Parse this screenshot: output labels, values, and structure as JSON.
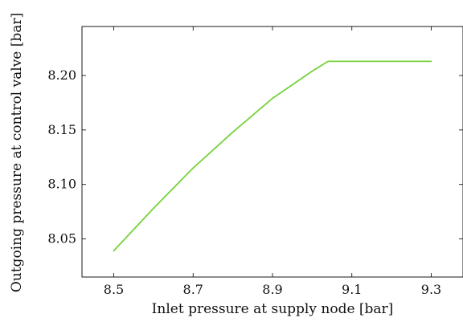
{
  "chart_data": {
    "type": "line",
    "title": "",
    "xlabel": "Inlet pressure at supply node [bar]",
    "ylabel": "Outgoing pressure at control valve [bar]",
    "xlim": [
      8.42,
      9.38
    ],
    "ylim": [
      8.015,
      8.245
    ],
    "grid": false,
    "xticks": [
      8.5,
      8.7,
      8.9,
      9.1,
      9.3
    ],
    "xtick_labels": [
      "8.5",
      "8.7",
      "8.9",
      "9.1",
      "9.3"
    ],
    "yticks": [
      8.05,
      8.1,
      8.15,
      8.2
    ],
    "ytick_labels": [
      "8.05",
      "8.10",
      "8.15",
      "8.20"
    ],
    "series": [
      {
        "color": "#76d23a",
        "x": [
          8.5,
          8.6,
          8.7,
          8.8,
          8.9,
          9.0,
          9.04,
          9.1,
          9.2,
          9.3
        ],
        "y": [
          8.039,
          8.078,
          8.115,
          8.148,
          8.179,
          8.204,
          8.213,
          8.213,
          8.213,
          8.213
        ]
      }
    ]
  }
}
